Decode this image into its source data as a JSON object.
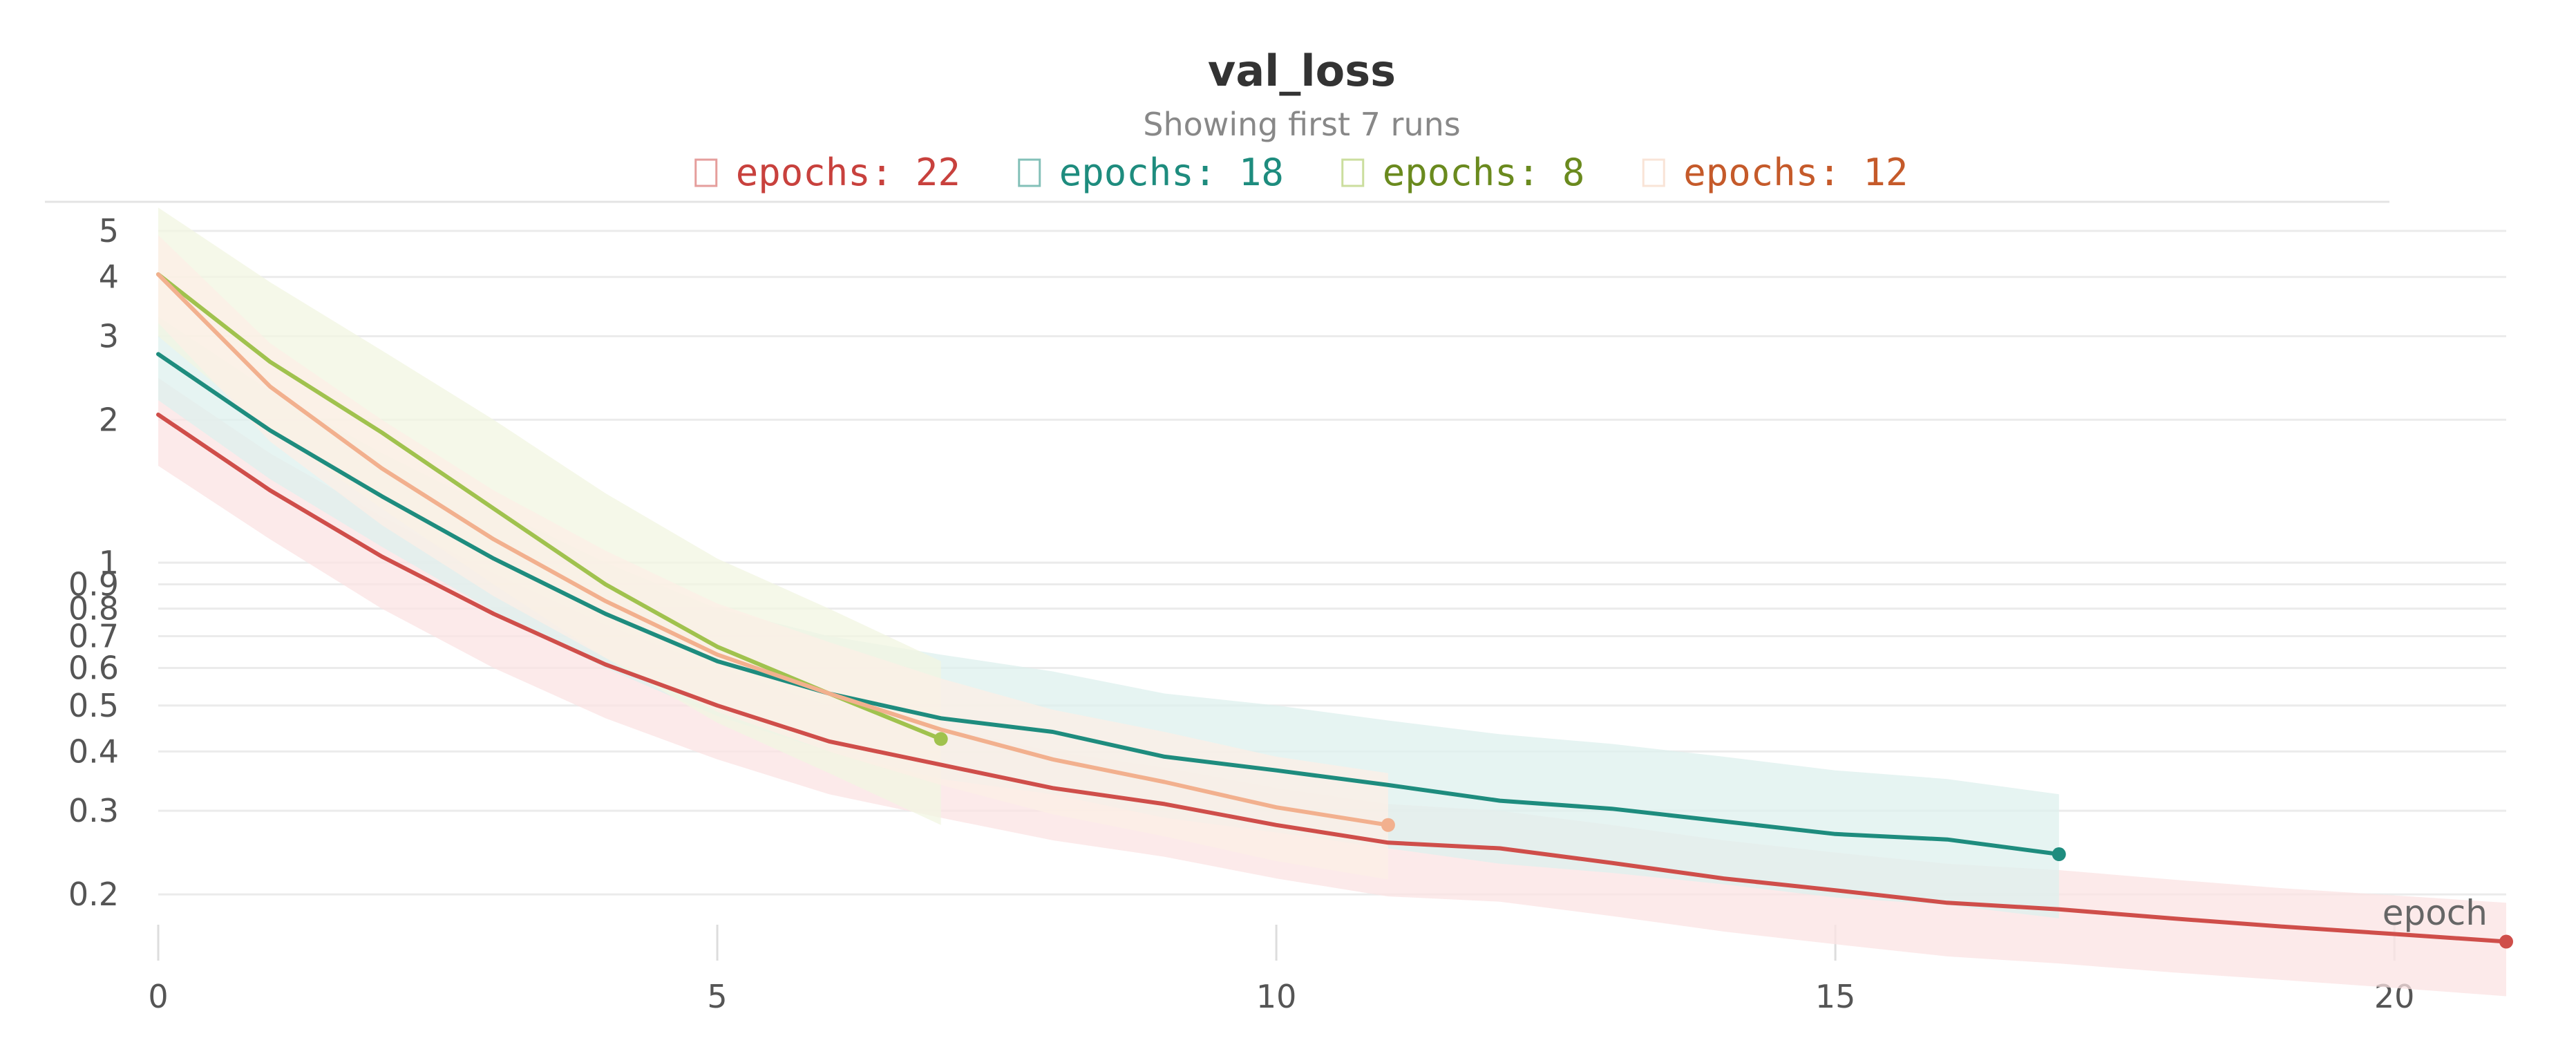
{
  "chart_data": {
    "type": "line",
    "title": "val_loss",
    "subtitle": "Showing first 7 runs",
    "xlabel": "epoch",
    "ylabel": "",
    "yscale": "log",
    "xlim": [
      0,
      21
    ],
    "ylim": [
      0.145,
      6.2
    ],
    "x_ticks": [
      "0",
      "5",
      "10",
      "15",
      "20"
    ],
    "x_tick_values": [
      0,
      5,
      10,
      15,
      20
    ],
    "y_ticks": [
      "0.2",
      "0.3",
      "0.4",
      "0.5",
      "0.6",
      "0.7",
      "0.8",
      "0.9",
      "1",
      "2",
      "3",
      "4",
      "5"
    ],
    "y_tick_values": [
      0.2,
      0.3,
      0.4,
      0.5,
      0.6,
      0.7,
      0.8,
      0.9,
      1,
      2,
      3,
      4,
      5
    ],
    "grid": true,
    "legend_position": "top",
    "series": [
      {
        "name": "epochs: 22",
        "color": "#cf4e4a",
        "band_color": "#fbe3e3",
        "text_color": "#c8413d",
        "x": [
          0,
          1,
          2,
          3,
          4,
          5,
          6,
          7,
          8,
          9,
          10,
          11,
          12,
          13,
          14,
          15,
          16,
          17,
          18,
          19,
          20,
          21
        ],
        "values": [
          2.05,
          1.42,
          1.03,
          0.78,
          0.61,
          0.5,
          0.42,
          0.375,
          0.335,
          0.31,
          0.28,
          0.257,
          0.25,
          0.233,
          0.216,
          0.204,
          0.192,
          0.186,
          0.178,
          0.171,
          0.165,
          0.159
        ],
        "upper": [
          2.45,
          1.7,
          1.25,
          0.95,
          0.74,
          0.6,
          0.5,
          0.45,
          0.4,
          0.37,
          0.335,
          0.31,
          0.3,
          0.28,
          0.26,
          0.245,
          0.232,
          0.225,
          0.215,
          0.206,
          0.199,
          0.192
        ],
        "lower": [
          1.6,
          1.12,
          0.8,
          0.6,
          0.47,
          0.385,
          0.325,
          0.29,
          0.26,
          0.24,
          0.216,
          0.198,
          0.193,
          0.18,
          0.167,
          0.157,
          0.148,
          0.143,
          0.137,
          0.132,
          0.127,
          0.122
        ]
      },
      {
        "name": "epochs: 18",
        "color": "#1e8c7e",
        "band_color": "#ddf0ee",
        "text_color": "#1e8c7e",
        "x": [
          0,
          1,
          2,
          3,
          4,
          5,
          6,
          7,
          8,
          9,
          10,
          11,
          12,
          13,
          14,
          15,
          16,
          17
        ],
        "values": [
          2.75,
          1.9,
          1.38,
          1.02,
          0.78,
          0.62,
          0.53,
          0.47,
          0.44,
          0.39,
          0.365,
          0.34,
          0.315,
          0.303,
          0.285,
          0.268,
          0.261,
          0.243
        ],
        "upper": [
          3.3,
          2.3,
          1.7,
          1.3,
          1.0,
          0.8,
          0.7,
          0.64,
          0.59,
          0.53,
          0.5,
          0.465,
          0.435,
          0.415,
          0.39,
          0.365,
          0.35,
          0.325
        ],
        "lower": [
          2.2,
          1.5,
          1.08,
          0.79,
          0.6,
          0.475,
          0.4,
          0.35,
          0.325,
          0.29,
          0.27,
          0.25,
          0.232,
          0.222,
          0.21,
          0.197,
          0.19,
          0.178
        ]
      },
      {
        "name": "epochs: 8",
        "color": "#a0c24e",
        "band_color": "#f1f6e2",
        "text_color": "#6a8a1e",
        "x": [
          0,
          1,
          2,
          3,
          4,
          5,
          6,
          7
        ],
        "values": [
          4.05,
          2.65,
          1.88,
          1.3,
          0.9,
          0.665,
          0.53,
          0.425
        ],
        "upper": [
          5.6,
          3.9,
          2.8,
          2.0,
          1.4,
          1.02,
          0.8,
          0.62
        ],
        "lower": [
          3.0,
          1.9,
          1.3,
          0.9,
          0.63,
          0.46,
          0.36,
          0.28
        ]
      },
      {
        "name": "epochs: 12",
        "color": "#f2b08e",
        "band_color": "#fcefe5",
        "text_color": "#c55a2a",
        "x": [
          0,
          1,
          2,
          3,
          4,
          5,
          6,
          7,
          8,
          9,
          10,
          11
        ],
        "values": [
          4.05,
          2.35,
          1.58,
          1.12,
          0.83,
          0.64,
          0.53,
          0.445,
          0.385,
          0.345,
          0.305,
          0.28
        ],
        "upper": [
          4.9,
          2.9,
          2.0,
          1.42,
          1.06,
          0.82,
          0.68,
          0.57,
          0.49,
          0.44,
          0.39,
          0.36
        ],
        "lower": [
          3.2,
          1.8,
          1.2,
          0.85,
          0.63,
          0.485,
          0.4,
          0.34,
          0.295,
          0.265,
          0.235,
          0.215
        ]
      }
    ]
  }
}
